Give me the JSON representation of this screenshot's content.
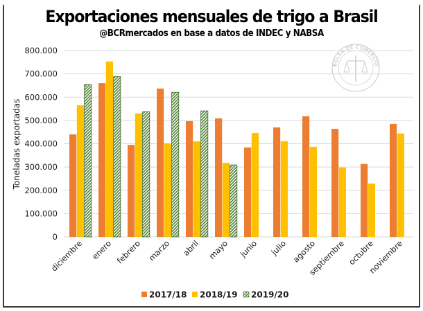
{
  "chart_data": {
    "type": "bar",
    "title": "Exportaciones mensuales de trigo a Brasil",
    "subtitle": "@BCRmercados en base a datos de INDEC y NABSA",
    "xlabel": "",
    "ylabel": "Toneladas exportadas",
    "ylim": [
      0,
      800000
    ],
    "ytick_step": 100000,
    "yticks": [
      "0",
      "100.000",
      "200.000",
      "300.000",
      "400.000",
      "500.000",
      "600.000",
      "700.000",
      "800.000"
    ],
    "grid": true,
    "legend_position": "bottom",
    "categories": [
      "diciembre",
      "enero",
      "febrero",
      "marzo",
      "abril",
      "mayo",
      "junio",
      "julio",
      "agosto",
      "septiembre",
      "octubre",
      "noviembre"
    ],
    "series": [
      {
        "name": "2017/18",
        "color": "#ED7D31",
        "pattern": "solid",
        "values": [
          440000,
          660000,
          395000,
          637000,
          497000,
          509000,
          384000,
          470000,
          518000,
          464000,
          313000,
          485000
        ]
      },
      {
        "name": "2018/19",
        "color": "#FFC000",
        "pattern": "solid",
        "values": [
          565000,
          753000,
          530000,
          402000,
          410000,
          318000,
          446000,
          411000,
          387000,
          298000,
          229000,
          444000
        ]
      },
      {
        "name": "2019/20",
        "color": "#548235",
        "pattern": "hatched",
        "values": [
          655000,
          688000,
          538000,
          621000,
          541000,
          309000,
          null,
          null,
          null,
          null,
          null,
          null
        ]
      }
    ],
    "watermark": "BOLSA DE COMERCIO DE ROSARIO"
  }
}
